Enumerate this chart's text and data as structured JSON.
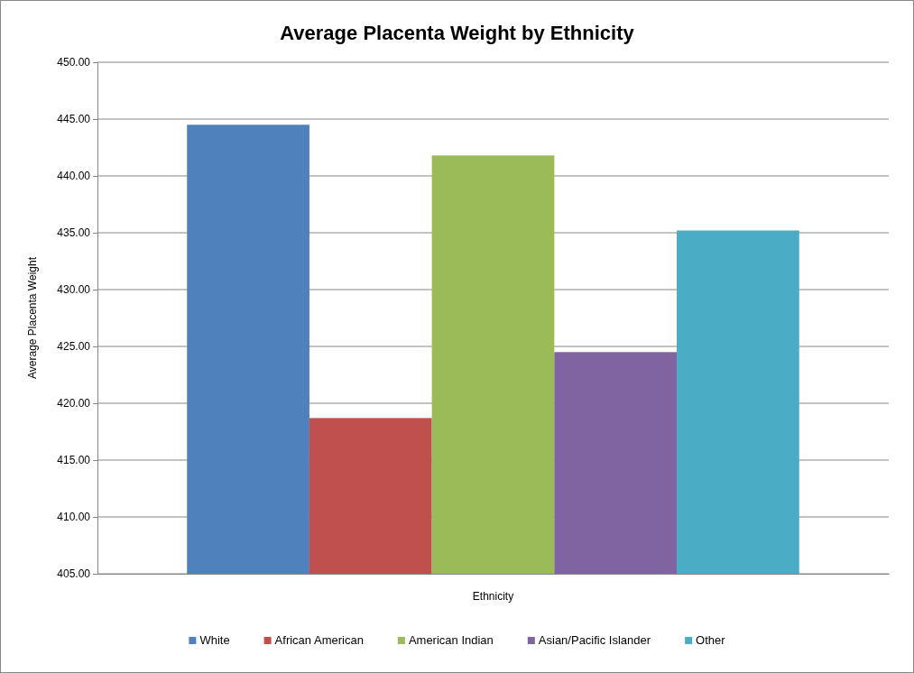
{
  "chart_data": {
    "type": "bar",
    "title": "Average Placenta Weight by Ethnicity",
    "xlabel": "Ethnicity",
    "ylabel": "Average Placenta Weight",
    "categories": [
      null
    ],
    "series": [
      {
        "name": "White",
        "color": "#4f81bd",
        "values": [
          444.5
        ]
      },
      {
        "name": "African American",
        "color": "#c0504d",
        "values": [
          418.7
        ]
      },
      {
        "name": "American Indian",
        "color": "#9bbb59",
        "values": [
          441.8
        ]
      },
      {
        "name": "Asian/Pacific Islander",
        "color": "#8064a2",
        "values": [
          424.5
        ]
      },
      {
        "name": "Other",
        "color": "#4bacc6",
        "values": [
          435.2
        ]
      }
    ],
    "ylim": [
      405,
      450
    ],
    "yticks": [
      {
        "value": 405,
        "label": "405.00"
      },
      {
        "value": 410,
        "label": "410.00"
      },
      {
        "value": 415,
        "label": "415.00"
      },
      {
        "value": 420,
        "label": "420.00"
      },
      {
        "value": 425,
        "label": "425.00"
      },
      {
        "value": 430,
        "label": "430.00"
      },
      {
        "value": 435,
        "label": "435.00"
      },
      {
        "value": 440,
        "label": "440.00"
      },
      {
        "value": 445,
        "label": "445.00"
      },
      {
        "value": 450,
        "label": "450.00"
      }
    ],
    "grid": "y",
    "legend": "bottom"
  }
}
